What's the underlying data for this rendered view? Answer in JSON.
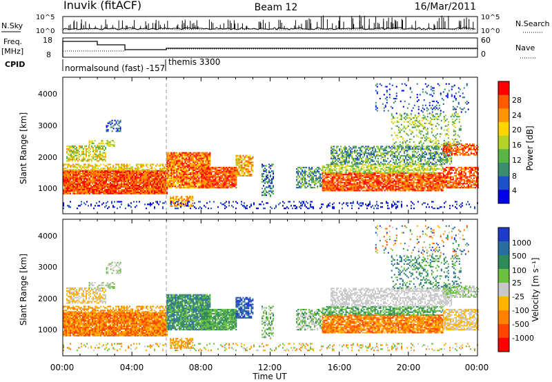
{
  "header": {
    "station": "Inuvik (fitACF)",
    "beam": "Beam 12",
    "date": "16/Mar/2011"
  },
  "sky_panel": {
    "left_label": "N.Sky",
    "right_label": "N.Search",
    "left_ticks": [
      "10^5",
      "10^0"
    ],
    "right_ticks": [
      "10^5",
      "10^0"
    ]
  },
  "freq_panel": {
    "left_label": "Freq.",
    "left_unit": "[MHz]",
    "right_label": "Nave",
    "left_ticks": [
      "18",
      "8"
    ],
    "right_ticks": [
      "60",
      "0"
    ]
  },
  "cpid_panel": {
    "label": "CPID",
    "programs": [
      "normalsound (fast) -157",
      "themis 3300"
    ]
  },
  "x_axis": {
    "label": "Time UT",
    "ticks": [
      "00:00",
      "04:00",
      "08:00",
      "12:00",
      "16:00",
      "20:00",
      "00:00"
    ]
  },
  "power_panel": {
    "ylabel": "Slant Range [km]",
    "yticks": [
      "4000",
      "3000",
      "2000",
      "1000"
    ],
    "colorbar_label": "Power [dB]",
    "colorbar_ticks": [
      "28",
      "24",
      "20",
      "16",
      "12",
      "8",
      "4"
    ],
    "colors": [
      "#0000e6",
      "#1e50c8",
      "#3c8c6e",
      "#5ab446",
      "#b4d228",
      "#ffd700",
      "#ff9600",
      "#ff5a00",
      "#ff0000"
    ]
  },
  "velocity_panel": {
    "ylabel": "Slant Range [km]",
    "yticks": [
      "4000",
      "3000",
      "2000",
      "1000"
    ],
    "colorbar_label": "Velocity [m s⁻¹]",
    "colorbar_ticks": [
      "1000",
      "500",
      "100",
      "25",
      "-25",
      "-100",
      "-500",
      "-1000"
    ],
    "colors": [
      "#1e3cc8",
      "#2a6ea0",
      "#2e8b57",
      "#6cc040",
      "#c8c8c8",
      "#ffb400",
      "#ff8200",
      "#ff4600",
      "#ff0000"
    ]
  },
  "chart_data": [
    {
      "type": "heatmap",
      "title": "Power",
      "x_range": [
        "00:00",
        "24:00"
      ],
      "y_range_km": [
        180,
        4500
      ],
      "colorbar_range_dB": [
        0,
        32
      ],
      "features": [
        {
          "x_start": "00:00",
          "x_end": "06:00",
          "range_km": [
            650,
            1600
          ],
          "level": "high (24-30 dB)"
        },
        {
          "x_start": "06:00",
          "x_end": "10:00",
          "range_km": [
            800,
            2100
          ],
          "level": "high (20-28 dB)"
        },
        {
          "x_start": "14:30",
          "x_end": "24:00",
          "range_km": [
            800,
            1500
          ],
          "level": "high (20-28 dB)"
        },
        {
          "x_start": "15:00",
          "x_end": "23:00",
          "range_km": [
            1600,
            2200
          ],
          "level": "medium (8-16 dB)"
        }
      ]
    },
    {
      "type": "heatmap",
      "title": "Velocity",
      "x_range": [
        "00:00",
        "24:00"
      ],
      "y_range_km": [
        180,
        4500
      ],
      "colorbar_range_ms": [
        -1000,
        1000
      ],
      "features": [
        {
          "x_start": "00:00",
          "x_end": "06:00",
          "range_km": [
            650,
            1600
          ],
          "level": "negative (-100 to -500 m/s)"
        },
        {
          "x_start": "06:00",
          "x_end": "10:00",
          "range_km": [
            800,
            2100
          ],
          "level": "positive (100-500 m/s)"
        },
        {
          "x_start": "10:00",
          "x_end": "11:00",
          "range_km": [
            1200,
            2000
          ],
          "level": "positive (>500 m/s)"
        },
        {
          "x_start": "15:00",
          "x_end": "23:00",
          "range_km": [
            1600,
            2200
          ],
          "level": "near zero (-25 to 25 m/s)"
        }
      ]
    }
  ]
}
